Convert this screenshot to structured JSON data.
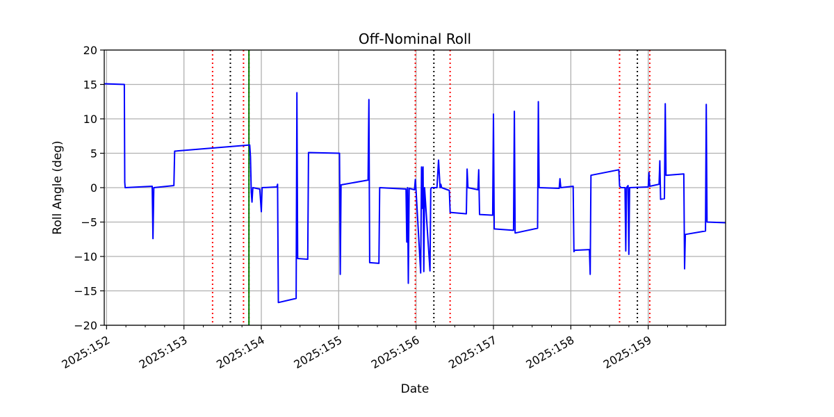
{
  "chart_data": {
    "type": "line",
    "title": "Off-Nominal Roll",
    "xlabel": "Date",
    "ylabel": "Roll Angle (deg)",
    "xlim": [
      151.97,
      160.0
    ],
    "ylim": [
      -20,
      20
    ],
    "x_ticks": [
      {
        "value": 152,
        "label": "2025:152"
      },
      {
        "value": 153,
        "label": "2025:153"
      },
      {
        "value": 154,
        "label": "2025:154"
      },
      {
        "value": 155,
        "label": "2025:155"
      },
      {
        "value": 156,
        "label": "2025:156"
      },
      {
        "value": 157,
        "label": "2025:157"
      },
      {
        "value": 158,
        "label": "2025:158"
      },
      {
        "value": 159,
        "label": "2025:159"
      }
    ],
    "x_minor_ticks": [
      152.25,
      152.5,
      152.75,
      153.25,
      153.5,
      153.75,
      154.25,
      154.5,
      154.75,
      155.25,
      155.5,
      155.75,
      156.25,
      156.5,
      156.75,
      157.25,
      157.5,
      157.75,
      158.25,
      158.5,
      158.75,
      159.25,
      159.5,
      159.75
    ],
    "y_ticks": [
      {
        "value": 20,
        "label": "20"
      },
      {
        "value": 15,
        "label": "15"
      },
      {
        "value": 10,
        "label": "10"
      },
      {
        "value": 5,
        "label": "5"
      },
      {
        "value": 0,
        "label": "0"
      },
      {
        "value": -5,
        "label": "−5"
      },
      {
        "value": -10,
        "label": "−10"
      },
      {
        "value": -15,
        "label": "−15"
      },
      {
        "value": -20,
        "label": "−20"
      }
    ],
    "grid": true,
    "vertical_lines": [
      {
        "x": 153.37,
        "color": "#ff0000",
        "style": "dotted"
      },
      {
        "x": 153.6,
        "color": "#000000",
        "style": "dotted"
      },
      {
        "x": 153.77,
        "color": "#ff0000",
        "style": "dotted"
      },
      {
        "x": 153.84,
        "color": "#ff0000",
        "style": "dotted"
      },
      {
        "x": 153.84,
        "color": "#008000",
        "style": "solid"
      },
      {
        "x": 155.99,
        "color": "#ff0000",
        "style": "dotted"
      },
      {
        "x": 156.23,
        "color": "#000000",
        "style": "dotted"
      },
      {
        "x": 156.44,
        "color": "#ff0000",
        "style": "dotted"
      },
      {
        "x": 158.63,
        "color": "#ff0000",
        "style": "dotted"
      },
      {
        "x": 158.86,
        "color": "#000000",
        "style": "dotted"
      },
      {
        "x": 159.02,
        "color": "#ff0000",
        "style": "dotted"
      }
    ],
    "series": [
      {
        "color": "#0000ff",
        "points": [
          [
            151.97,
            15.1
          ],
          [
            152.23,
            15.0
          ],
          [
            152.235,
            0.8
          ],
          [
            152.24,
            0.0
          ],
          [
            152.59,
            0.2
          ],
          [
            152.6,
            -7.4
          ],
          [
            152.61,
            0.0
          ],
          [
            152.87,
            0.3
          ],
          [
            152.88,
            5.3
          ],
          [
            153.85,
            6.2
          ],
          [
            153.86,
            4.5
          ],
          [
            153.87,
            -0.6
          ],
          [
            153.88,
            -2.1
          ],
          [
            153.89,
            0.0
          ],
          [
            153.98,
            -0.2
          ],
          [
            154.0,
            -3.5
          ],
          [
            154.01,
            0.0
          ],
          [
            154.2,
            0.1
          ],
          [
            154.21,
            0.5
          ],
          [
            154.22,
            -16.7
          ],
          [
            154.45,
            -16.1
          ],
          [
            154.46,
            13.8
          ],
          [
            154.47,
            -10.3
          ],
          [
            154.6,
            -10.4
          ],
          [
            154.61,
            5.1
          ],
          [
            155.01,
            5.0
          ],
          [
            155.02,
            -12.6
          ],
          [
            155.03,
            0.4
          ],
          [
            155.38,
            1.1
          ],
          [
            155.39,
            12.8
          ],
          [
            155.4,
            -10.9
          ],
          [
            155.52,
            -11.0
          ],
          [
            155.53,
            0.0
          ],
          [
            155.87,
            -0.2
          ],
          [
            155.88,
            -7.9
          ],
          [
            155.89,
            0.0
          ],
          [
            155.9,
            -13.9
          ],
          [
            155.91,
            -0.1
          ],
          [
            155.98,
            -0.3
          ],
          [
            155.99,
            1.2
          ],
          [
            156.0,
            -0.5
          ],
          [
            156.06,
            -12.4
          ],
          [
            156.07,
            3.0
          ],
          [
            156.08,
            -3.0
          ],
          [
            156.09,
            3.0
          ],
          [
            156.1,
            -12.2
          ],
          [
            156.11,
            0.0
          ],
          [
            156.18,
            -12.1
          ],
          [
            156.19,
            -0.2
          ],
          [
            156.2,
            0.0
          ],
          [
            156.27,
            0.0
          ],
          [
            156.29,
            4.0
          ],
          [
            156.31,
            0.0
          ],
          [
            156.32,
            0.5
          ],
          [
            156.33,
            0.0
          ],
          [
            156.43,
            -0.4
          ],
          [
            156.44,
            -3.6
          ],
          [
            156.65,
            -3.8
          ],
          [
            156.66,
            2.7
          ],
          [
            156.67,
            0.0
          ],
          [
            156.8,
            -0.3
          ],
          [
            156.81,
            2.6
          ],
          [
            156.82,
            -3.9
          ],
          [
            156.99,
            -4.0
          ],
          [
            157.0,
            10.7
          ],
          [
            157.01,
            -6.0
          ],
          [
            157.26,
            -6.2
          ],
          [
            157.27,
            11.1
          ],
          [
            157.28,
            -6.6
          ],
          [
            157.57,
            -5.9
          ],
          [
            157.58,
            12.5
          ],
          [
            157.59,
            0.0
          ],
          [
            157.85,
            -0.1
          ],
          [
            157.86,
            1.3
          ],
          [
            157.87,
            0.0
          ],
          [
            158.03,
            0.2
          ],
          [
            158.04,
            -9.3
          ],
          [
            158.05,
            -9.1
          ],
          [
            158.24,
            -9.0
          ],
          [
            158.25,
            -12.6
          ],
          [
            158.26,
            1.8
          ],
          [
            158.62,
            2.6
          ],
          [
            158.63,
            0.2
          ],
          [
            158.65,
            0.0
          ],
          [
            158.7,
            0.0
          ],
          [
            158.71,
            -9.2
          ],
          [
            158.72,
            0.0
          ],
          [
            158.74,
            0.3
          ],
          [
            158.75,
            -9.7
          ],
          [
            158.76,
            0.0
          ],
          [
            159.0,
            0.1
          ],
          [
            159.01,
            2.2
          ],
          [
            159.02,
            0.2
          ],
          [
            159.14,
            0.5
          ],
          [
            159.15,
            3.9
          ],
          [
            159.16,
            -1.7
          ],
          [
            159.21,
            -1.6
          ],
          [
            159.22,
            12.2
          ],
          [
            159.23,
            1.8
          ],
          [
            159.46,
            2.0
          ],
          [
            159.47,
            -11.8
          ],
          [
            159.48,
            -6.8
          ],
          [
            159.74,
            -6.3
          ],
          [
            159.75,
            12.1
          ],
          [
            159.76,
            -5.0
          ],
          [
            160.0,
            -5.1
          ]
        ]
      }
    ]
  }
}
